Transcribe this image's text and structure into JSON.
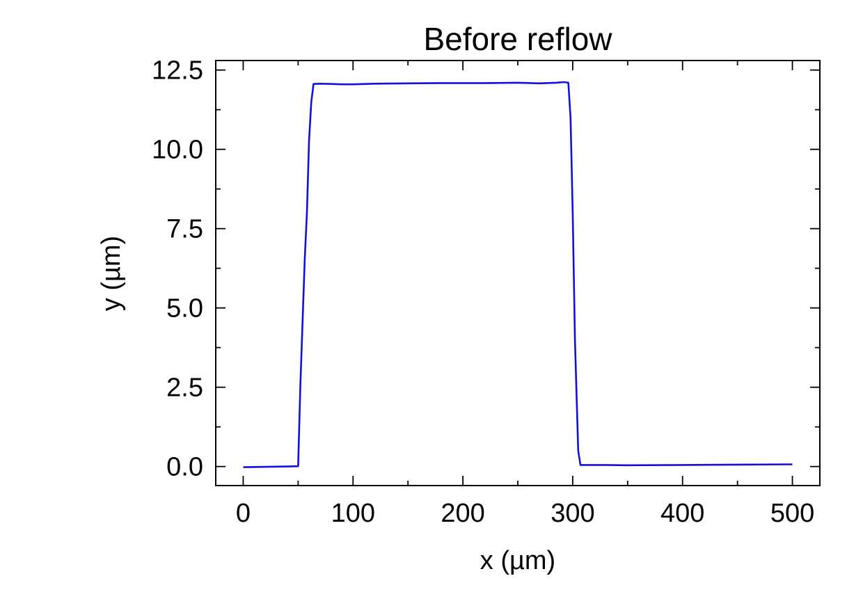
{
  "chart_data": {
    "type": "line",
    "title": "Before reflow",
    "xlabel": "x (µm)",
    "ylabel": "y (µm)",
    "xlim": [
      -25,
      525
    ],
    "ylim": [
      -0.6,
      12.8
    ],
    "xticks": [
      0,
      100,
      200,
      300,
      400,
      500
    ],
    "xtick_labels": [
      "0",
      "100",
      "200",
      "300",
      "400",
      "500"
    ],
    "yticks": [
      0.0,
      2.5,
      5.0,
      7.5,
      10.0,
      12.5
    ],
    "ytick_labels": [
      "0.0",
      "2.5",
      "5.0",
      "7.5",
      "10.0",
      "12.5"
    ],
    "grid": false,
    "line_color": "#1010e0",
    "series": [
      {
        "x": [
          0,
          20,
          40,
          50,
          52,
          56,
          58,
          60,
          62,
          64,
          70,
          80,
          90,
          100,
          120,
          150,
          180,
          200,
          220,
          250,
          270,
          285,
          292,
          296,
          298,
          300,
          302,
          305,
          307,
          310,
          330,
          350,
          400,
          450,
          500
        ],
        "y": [
          -0.02,
          -0.01,
          0.0,
          0.01,
          2.5,
          6.5,
          8.0,
          10.3,
          11.5,
          12.06,
          12.07,
          12.06,
          12.05,
          12.05,
          12.07,
          12.08,
          12.09,
          12.09,
          12.09,
          12.1,
          12.08,
          12.1,
          12.12,
          12.1,
          11.0,
          8.0,
          4.0,
          0.5,
          0.05,
          0.05,
          0.05,
          0.04,
          0.05,
          0.06,
          0.07
        ]
      }
    ]
  }
}
